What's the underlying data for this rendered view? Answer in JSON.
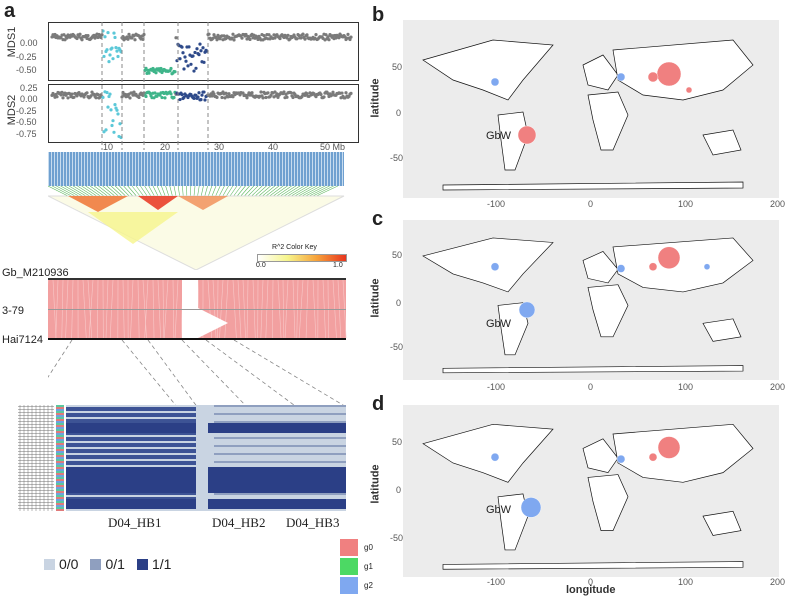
{
  "panels": {
    "a": "a",
    "b": "b",
    "c": "c",
    "d": "d"
  },
  "mds": {
    "mds1_label": "MDS1",
    "mds2_label": "MDS2",
    "mds1_ticks": [
      "0.00",
      "-0.25",
      "-0.50"
    ],
    "mds2_ticks": [
      "0.25",
      "0.00",
      "-0.25",
      "-0.50",
      "-0.75"
    ],
    "x_ticks": [
      "10",
      "20",
      "30",
      "40",
      "50 Mb"
    ],
    "colors": {
      "gray": "#7a7a7a",
      "cyan": "#5cc8d8",
      "green": "#3fb58a",
      "navy": "#2e4a8a"
    }
  },
  "ld": {
    "color_key_title": "R^2 Color Key",
    "color_key_min": "0.0",
    "color_key_max": "1.0"
  },
  "synteny": {
    "top_label": "Gb_M210936",
    "mid_label": "3-79",
    "bottom_label": "Hai7124",
    "color": "#f2a0a0"
  },
  "heatmap": {
    "haplotype_blocks": [
      "D04_HB1",
      "D04_HB2",
      "D04_HB3"
    ],
    "genotype_legend": [
      {
        "label": "0/0",
        "color": "#c9d4e2"
      },
      {
        "label": "0/1",
        "color": "#8f9fbf"
      },
      {
        "label": "1/1",
        "color": "#2b3f86"
      }
    ]
  },
  "groups": [
    {
      "label": "g0",
      "color": "#f08080"
    },
    {
      "label": "g1",
      "color": "#4cd964"
    },
    {
      "label": "g2",
      "color": "#7fa8f0"
    }
  ],
  "maps": {
    "ylabel": "latitude",
    "xlabel": "longitude",
    "x_ticks": [
      "-100",
      "0",
      "100",
      "200"
    ],
    "y_ticks": [
      "50",
      "0",
      "-50"
    ],
    "annotation": "GbW"
  }
}
